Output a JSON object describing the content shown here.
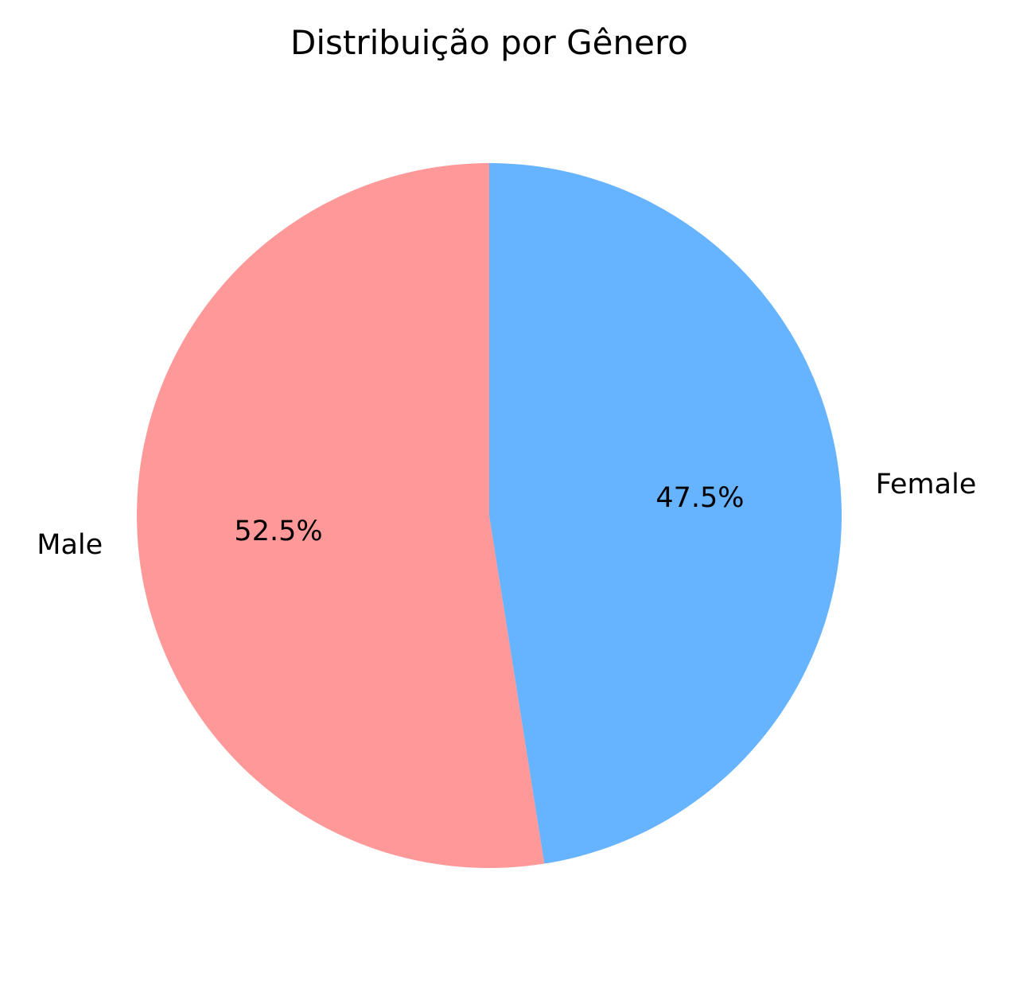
{
  "chart_data": {
    "type": "pie",
    "title": "Distribuição por Gênero",
    "labels": [
      "Male",
      "Female"
    ],
    "values": [
      52.5,
      47.5
    ],
    "pct_labels": [
      "52.5%",
      "47.5%"
    ],
    "colors": [
      "#ff9999",
      "#66b3ff"
    ],
    "start_angle_deg": 90,
    "direction": "counterclockwise"
  }
}
